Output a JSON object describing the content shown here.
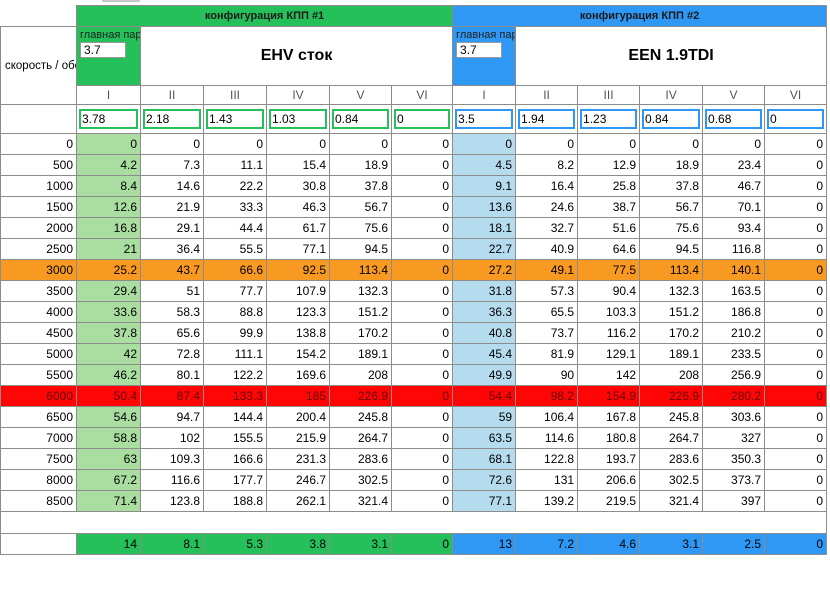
{
  "config1": {
    "title": "конфигурация КПП #1",
    "pair_label": "главная пара",
    "pair_value": "3.7",
    "name": "EHV сток",
    "ratios": [
      "3.78",
      "2.18",
      "1.43",
      "1.03",
      "0.84",
      "0"
    ]
  },
  "config2": {
    "title": "конфигурация КПП #2",
    "pair_label": "главная пара",
    "pair_value": "3.7",
    "name": "EEN 1.9TDI",
    "ratios": [
      "3.5",
      "1.94",
      "1.23",
      "0.84",
      "0.68",
      "0"
    ]
  },
  "row_label": "скорость / обороты",
  "gears": [
    "I",
    "II",
    "III",
    "IV",
    "V",
    "VI"
  ],
  "colors": {
    "green": "#25c05a",
    "blue": "#2f98f5",
    "orange": "#f89a21",
    "red": "#ff0606",
    "light_green": "#a9dea0",
    "light_blue": "#b5dbee"
  },
  "rows": [
    {
      "rpm": "0",
      "c1": [
        "0",
        "0",
        "0",
        "0",
        "0",
        "0"
      ],
      "c2": [
        "0",
        "0",
        "0",
        "0",
        "0",
        "0"
      ]
    },
    {
      "rpm": "500",
      "c1": [
        "4.2",
        "7.3",
        "11.1",
        "15.4",
        "18.9",
        "0"
      ],
      "c2": [
        "4.5",
        "8.2",
        "12.9",
        "18.9",
        "23.4",
        "0"
      ]
    },
    {
      "rpm": "1000",
      "c1": [
        "8.4",
        "14.6",
        "22.2",
        "30.8",
        "37.8",
        "0"
      ],
      "c2": [
        "9.1",
        "16.4",
        "25.8",
        "37.8",
        "46.7",
        "0"
      ]
    },
    {
      "rpm": "1500",
      "c1": [
        "12.6",
        "21.9",
        "33.3",
        "46.3",
        "56.7",
        "0"
      ],
      "c2": [
        "13.6",
        "24.6",
        "38.7",
        "56.7",
        "70.1",
        "0"
      ]
    },
    {
      "rpm": "2000",
      "c1": [
        "16.8",
        "29.1",
        "44.4",
        "61.7",
        "75.6",
        "0"
      ],
      "c2": [
        "18.1",
        "32.7",
        "51.6",
        "75.6",
        "93.4",
        "0"
      ]
    },
    {
      "rpm": "2500",
      "c1": [
        "21",
        "36.4",
        "55.5",
        "77.1",
        "94.5",
        "0"
      ],
      "c2": [
        "22.7",
        "40.9",
        "64.6",
        "94.5",
        "116.8",
        "0"
      ]
    },
    {
      "rpm": "3000",
      "hl": "orange",
      "c1": [
        "25.2",
        "43.7",
        "66.6",
        "92.5",
        "113.4",
        "0"
      ],
      "c2": [
        "27.2",
        "49.1",
        "77.5",
        "113.4",
        "140.1",
        "0"
      ]
    },
    {
      "rpm": "3500",
      "c1": [
        "29.4",
        "51",
        "77.7",
        "107.9",
        "132.3",
        "0"
      ],
      "c2": [
        "31.8",
        "57.3",
        "90.4",
        "132.3",
        "163.5",
        "0"
      ]
    },
    {
      "rpm": "4000",
      "c1": [
        "33.6",
        "58.3",
        "88.8",
        "123.3",
        "151.2",
        "0"
      ],
      "c2": [
        "36.3",
        "65.5",
        "103.3",
        "151.2",
        "186.8",
        "0"
      ]
    },
    {
      "rpm": "4500",
      "c1": [
        "37.8",
        "65.6",
        "99.9",
        "138.8",
        "170.2",
        "0"
      ],
      "c2": [
        "40.8",
        "73.7",
        "116.2",
        "170.2",
        "210.2",
        "0"
      ]
    },
    {
      "rpm": "5000",
      "c1": [
        "42",
        "72.8",
        "111.1",
        "154.2",
        "189.1",
        "0"
      ],
      "c2": [
        "45.4",
        "81.9",
        "129.1",
        "189.1",
        "233.5",
        "0"
      ]
    },
    {
      "rpm": "5500",
      "c1": [
        "46.2",
        "80.1",
        "122.2",
        "169.6",
        "208",
        "0"
      ],
      "c2": [
        "49.9",
        "90",
        "142",
        "208",
        "256.9",
        "0"
      ]
    },
    {
      "rpm": "6000",
      "hl": "red",
      "c1": [
        "50.4",
        "87.4",
        "133.3",
        "185",
        "226.9",
        "0"
      ],
      "c2": [
        "54.4",
        "98.2",
        "154.9",
        "226.9",
        "280.2",
        "0"
      ]
    },
    {
      "rpm": "6500",
      "c1": [
        "54.6",
        "94.7",
        "144.4",
        "200.4",
        "245.8",
        "0"
      ],
      "c2": [
        "59",
        "106.4",
        "167.8",
        "245.8",
        "303.6",
        "0"
      ]
    },
    {
      "rpm": "7000",
      "c1": [
        "58.8",
        "102",
        "155.5",
        "215.9",
        "264.7",
        "0"
      ],
      "c2": [
        "63.5",
        "114.6",
        "180.8",
        "264.7",
        "327",
        "0"
      ]
    },
    {
      "rpm": "7500",
      "c1": [
        "63",
        "109.3",
        "166.6",
        "231.3",
        "283.6",
        "0"
      ],
      "c2": [
        "68.1",
        "122.8",
        "193.7",
        "283.6",
        "350.3",
        "0"
      ]
    },
    {
      "rpm": "8000",
      "c1": [
        "67.2",
        "116.6",
        "177.7",
        "246.7",
        "302.5",
        "0"
      ],
      "c2": [
        "72.6",
        "131",
        "206.6",
        "302.5",
        "373.7",
        "0"
      ]
    },
    {
      "rpm": "8500",
      "c1": [
        "71.4",
        "123.8",
        "188.8",
        "262.1",
        "321.4",
        "0"
      ],
      "c2": [
        "77.1",
        "139.2",
        "219.5",
        "321.4",
        "397",
        "0"
      ]
    }
  ],
  "footer": {
    "c1": [
      "14",
      "8.1",
      "5.3",
      "3.8",
      "3.1",
      "0"
    ],
    "c2": [
      "13",
      "7.2",
      "4.6",
      "3.1",
      "2.5",
      "0"
    ]
  }
}
